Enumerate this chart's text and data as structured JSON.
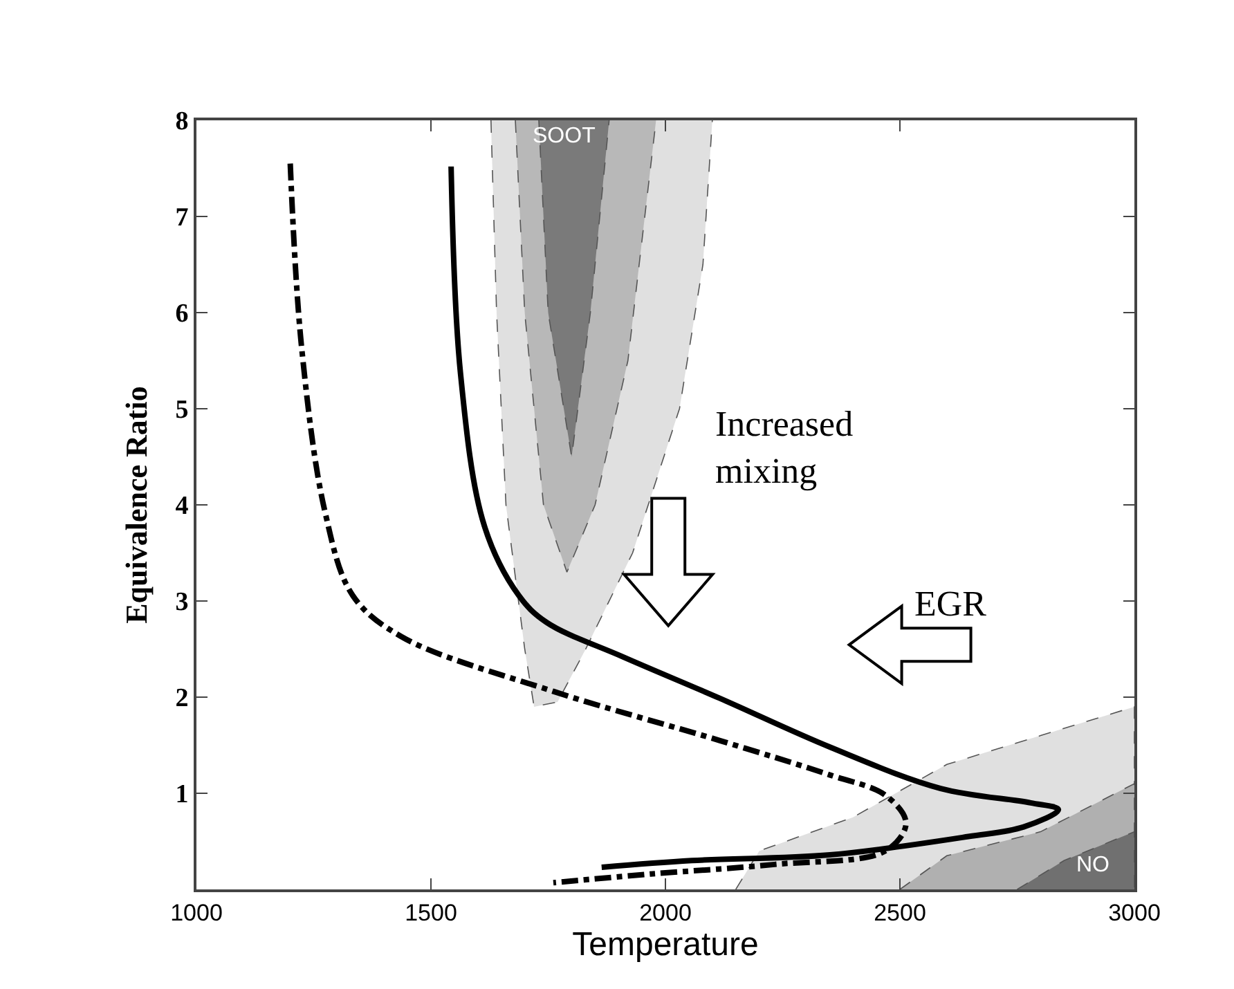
{
  "chart_data": {
    "type": "line",
    "xlabel": "Temperature",
    "ylabel": "Equivalence Ratio",
    "xlim": [
      1000,
      3000
    ],
    "xticks": [
      1000,
      1500,
      2000,
      2500,
      3000
    ],
    "ylim": [
      0,
      8
    ],
    "yticks": [
      1,
      2,
      3,
      4,
      5,
      6,
      7,
      8
    ],
    "grid": false,
    "marker": "none",
    "series": [
      {
        "type": "area",
        "color": "#e0e0e0",
        "x": [
          1628,
          1640,
          1660,
          1700,
          1720,
          1770,
          1830,
          1930,
          2030,
          2080,
          2100
        ],
        "values": [
          8,
          6,
          4,
          2.5,
          1.9,
          1.95,
          2.5,
          3.5,
          5,
          6.5,
          8
        ]
      },
      {
        "type": "area",
        "color": "#b8b8b8",
        "x": [
          1680,
          1700,
          1740,
          1790,
          1850,
          1920,
          1980
        ],
        "values": [
          8,
          6,
          4,
          3.3,
          4,
          5.5,
          8
        ]
      },
      {
        "type": "area",
        "color": "#7a7a7a",
        "x": [
          1730,
          1750,
          1800,
          1840,
          1880
        ],
        "values": [
          8,
          6,
          4.5,
          6,
          8
        ]
      },
      {
        "type": "area",
        "color": "#e0e0e0",
        "x": [
          2150,
          2200,
          2400,
          2600,
          2800,
          3000,
          3000
        ],
        "values": [
          0,
          0.4,
          0.75,
          1.3,
          1.6,
          1.9,
          0
        ]
      },
      {
        "type": "area",
        "color": "#b0b0b0",
        "x": [
          2500,
          2600,
          2800,
          3000,
          3000
        ],
        "values": [
          0,
          0.35,
          0.6,
          1.1,
          0
        ]
      },
      {
        "type": "area",
        "color": "#707070",
        "x": [
          2750,
          2850,
          3000,
          3000
        ],
        "values": [
          0,
          0.3,
          0.6,
          0
        ]
      },
      {
        "color": "#000000",
        "line_style": "solid",
        "x": [
          1543,
          1563,
          1614,
          1687,
          1746,
          1909,
          2115,
          2351,
          2587,
          2779,
          2838,
          2764,
          2646,
          2351,
          2056,
          1864
        ],
        "values": [
          7.52,
          5.37,
          3.78,
          3.06,
          2.78,
          2.42,
          1.99,
          1.48,
          1.05,
          0.9,
          0.83,
          0.65,
          0.55,
          0.36,
          0.3,
          0.23
        ]
      },
      {
        "color": "#000000",
        "line_style": "dashdot",
        "x": [
          1200,
          1224,
          1274,
          1333,
          1437,
          1761,
          2115,
          2351,
          2469,
          2513,
          2469,
          2233,
          1968,
          1761
        ],
        "values": [
          7.55,
          5.65,
          3.93,
          3.06,
          2.63,
          2.06,
          1.55,
          1.19,
          0.98,
          0.69,
          0.4,
          0.26,
          0.16,
          0.07
        ]
      }
    ],
    "annotations": [
      "SOOT",
      "NO",
      "Increased\nmixing",
      "EGR"
    ]
  }
}
